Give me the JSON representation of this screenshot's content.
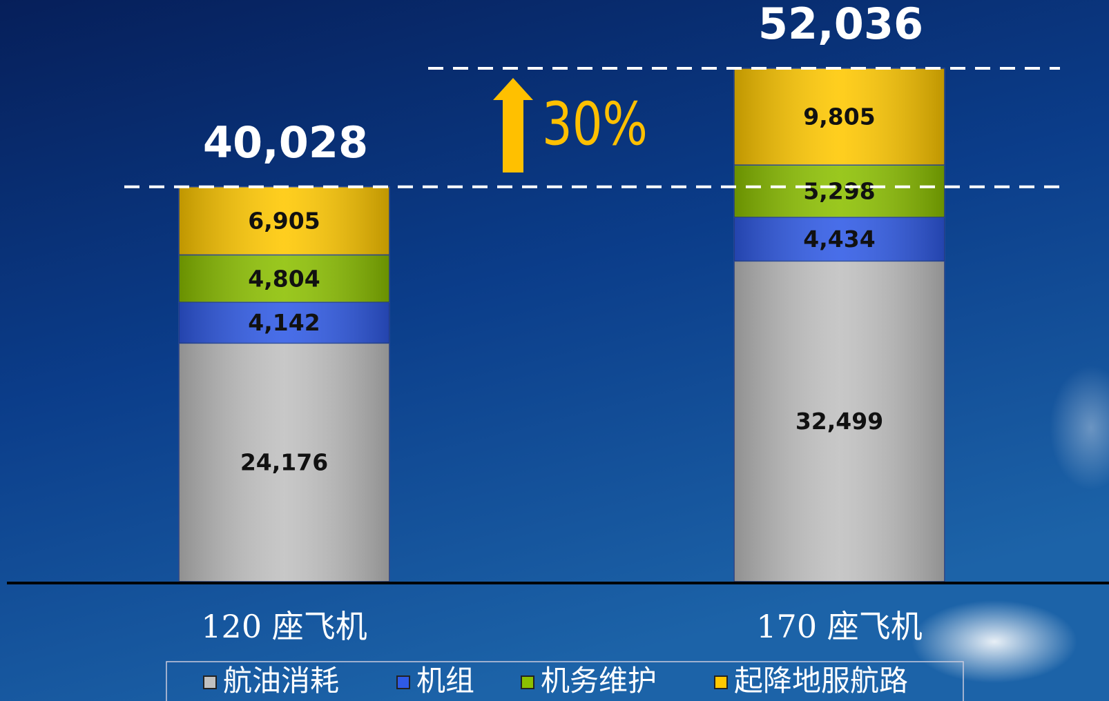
{
  "chart_data": {
    "type": "stacked_bar",
    "categories": [
      "120 座飞机",
      "170 座飞机"
    ],
    "series": [
      {
        "name": "航油消耗",
        "color": "#c0c0c0",
        "values": [
          24176,
          32499
        ],
        "value_labels": [
          "24,176",
          "32,499"
        ]
      },
      {
        "name": "机组",
        "color": "#2f5ae6",
        "values": [
          4142,
          4434
        ],
        "value_labels": [
          "4,142",
          "4,434"
        ]
      },
      {
        "name": "机务维护",
        "color": "#8cc000",
        "values": [
          4804,
          5298
        ],
        "value_labels": [
          "4,804",
          "5,298"
        ]
      },
      {
        "name": "起降地服航路",
        "color": "#ffc800",
        "values": [
          6905,
          9805
        ],
        "value_labels": [
          "6,905",
          "9,805"
        ]
      }
    ],
    "totals": [
      40028,
      52036
    ],
    "total_labels": [
      "40,028",
      "52,036"
    ],
    "annotation": "30%"
  }
}
